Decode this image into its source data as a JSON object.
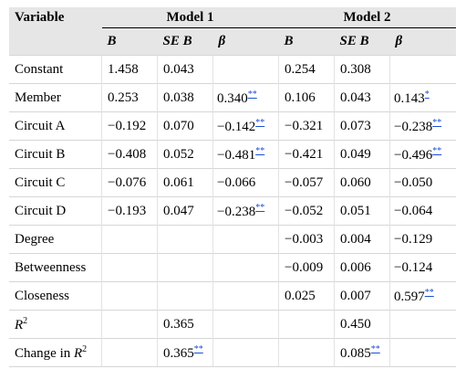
{
  "header": {
    "variable": "Variable",
    "models": [
      "Model 1",
      "Model 2"
    ],
    "columns": [
      "B",
      "SE B",
      "β",
      "B",
      "SE B",
      "β"
    ]
  },
  "rows": [
    {
      "label": "Constant",
      "label_sup": "",
      "cells": [
        {
          "v": "1.458",
          "s": ""
        },
        {
          "v": "0.043",
          "s": ""
        },
        {
          "v": "",
          "s": ""
        },
        {
          "v": "0.254",
          "s": ""
        },
        {
          "v": "0.308",
          "s": ""
        },
        {
          "v": "",
          "s": ""
        }
      ]
    },
    {
      "label": "Member",
      "label_sup": "",
      "cells": [
        {
          "v": "0.253",
          "s": ""
        },
        {
          "v": "0.038",
          "s": ""
        },
        {
          "v": "0.340",
          "s": "**"
        },
        {
          "v": "0.106",
          "s": ""
        },
        {
          "v": "0.043",
          "s": ""
        },
        {
          "v": "0.143",
          "s": "*"
        }
      ]
    },
    {
      "label": "Circuit A",
      "label_sup": "",
      "cells": [
        {
          "v": "−0.192",
          "s": ""
        },
        {
          "v": "0.070",
          "s": ""
        },
        {
          "v": "−0.142",
          "s": "**"
        },
        {
          "v": "−0.321",
          "s": ""
        },
        {
          "v": "0.073",
          "s": ""
        },
        {
          "v": "−0.238",
          "s": "**"
        }
      ]
    },
    {
      "label": "Circuit B",
      "label_sup": "",
      "cells": [
        {
          "v": "−0.408",
          "s": ""
        },
        {
          "v": "0.052",
          "s": ""
        },
        {
          "v": "−0.481",
          "s": "**"
        },
        {
          "v": "−0.421",
          "s": ""
        },
        {
          "v": "0.049",
          "s": ""
        },
        {
          "v": "−0.496",
          "s": "**"
        }
      ]
    },
    {
      "label": "Circuit C",
      "label_sup": "",
      "cells": [
        {
          "v": "−0.076",
          "s": ""
        },
        {
          "v": "0.061",
          "s": ""
        },
        {
          "v": "−0.066",
          "s": ""
        },
        {
          "v": "−0.057",
          "s": ""
        },
        {
          "v": "0.060",
          "s": ""
        },
        {
          "v": "−0.050",
          "s": ""
        }
      ]
    },
    {
      "label": "Circuit D",
      "label_sup": "",
      "cells": [
        {
          "v": "−0.193",
          "s": ""
        },
        {
          "v": "0.047",
          "s": ""
        },
        {
          "v": "−0.238",
          "s": "**"
        },
        {
          "v": "−0.052",
          "s": ""
        },
        {
          "v": "0.051",
          "s": ""
        },
        {
          "v": "−0.064",
          "s": ""
        }
      ]
    },
    {
      "label": "Degree",
      "label_sup": "",
      "cells": [
        {
          "v": "",
          "s": ""
        },
        {
          "v": "",
          "s": ""
        },
        {
          "v": "",
          "s": ""
        },
        {
          "v": "−0.003",
          "s": ""
        },
        {
          "v": "0.004",
          "s": ""
        },
        {
          "v": "−0.129",
          "s": ""
        }
      ]
    },
    {
      "label": "Betweenness",
      "label_sup": "",
      "cells": [
        {
          "v": "",
          "s": ""
        },
        {
          "v": "",
          "s": ""
        },
        {
          "v": "",
          "s": ""
        },
        {
          "v": "−0.009",
          "s": ""
        },
        {
          "v": "0.006",
          "s": ""
        },
        {
          "v": "−0.124",
          "s": ""
        }
      ]
    },
    {
      "label": "Closeness",
      "label_sup": "",
      "cells": [
        {
          "v": "",
          "s": ""
        },
        {
          "v": "",
          "s": ""
        },
        {
          "v": "",
          "s": ""
        },
        {
          "v": "0.025",
          "s": ""
        },
        {
          "v": "0.007",
          "s": ""
        },
        {
          "v": "0.597",
          "s": "**"
        }
      ]
    },
    {
      "label": "R",
      "label_sup": "2",
      "italic": true,
      "cells": [
        {
          "v": "",
          "s": ""
        },
        {
          "v": "0.365",
          "s": ""
        },
        {
          "v": "",
          "s": ""
        },
        {
          "v": "",
          "s": ""
        },
        {
          "v": "0.450",
          "s": ""
        },
        {
          "v": "",
          "s": ""
        }
      ]
    },
    {
      "label": "Change in R",
      "label_sup": "2",
      "italic_tail": true,
      "cells": [
        {
          "v": "",
          "s": ""
        },
        {
          "v": "0.365",
          "s": "**"
        },
        {
          "v": "",
          "s": ""
        },
        {
          "v": "",
          "s": ""
        },
        {
          "v": "0.085",
          "s": "**"
        },
        {
          "v": "",
          "s": ""
        }
      ]
    }
  ],
  "colors": {
    "header_bg": "#e6e6e6",
    "link": "#1a4fd6"
  }
}
